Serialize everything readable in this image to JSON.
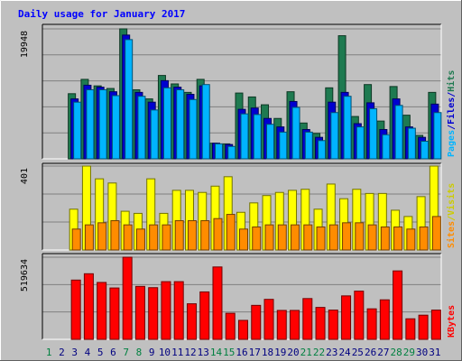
{
  "chart_data": {
    "type": "bar",
    "title": "Daily usage for January 2017",
    "categories": [
      "1",
      "2",
      "3",
      "4",
      "5",
      "6",
      "7",
      "8",
      "9",
      "10",
      "11",
      "12",
      "13",
      "14",
      "15",
      "16",
      "17",
      "18",
      "19",
      "20",
      "21",
      "22",
      "23",
      "24",
      "25",
      "26",
      "27",
      "28",
      "29",
      "30",
      "31"
    ],
    "weekend_days": [
      "1",
      "7",
      "8",
      "14",
      "15",
      "21",
      "22",
      "28",
      "29"
    ],
    "panels": [
      {
        "id": "pages_files_hits",
        "axis_max_label": "19948",
        "ylim": [
          0,
          19948
        ],
        "legend": [
          "Pages",
          "/",
          "Files",
          "/",
          "Hits"
        ],
        "series": [
          {
            "name": "Hits",
            "color": "#1e7a50",
            "values": [
              0,
              0,
              10000,
              12200,
              11200,
              10800,
              19950,
              10600,
              9200,
              12800,
              11500,
              10200,
              12200,
              2400,
              2300,
              10100,
              9500,
              8300,
              6200,
              10300,
              5500,
              3900,
              10900,
              18900,
              6500,
              11400,
              5800,
              11100,
              6700,
              3600,
              10200
            ]
          },
          {
            "name": "Files",
            "color": "#0000d0",
            "values": [
              0,
              0,
              9200,
              11300,
              11000,
              10300,
              19000,
              10200,
              8700,
              12000,
              11000,
              9900,
              11200,
              2400,
              2200,
              7600,
              7800,
              6200,
              4900,
              8800,
              4500,
              3300,
              8700,
              10200,
              5400,
              8600,
              4500,
              9200,
              4900,
              3300,
              8400
            ]
          },
          {
            "name": "Pages",
            "color": "#00b4ff",
            "values": [
              0,
              0,
              8700,
              10600,
              10600,
              9700,
              18300,
              9600,
              7500,
              10900,
              10600,
              9100,
              11400,
              2300,
              1900,
              6900,
              6800,
              5300,
              4100,
              7900,
              4100,
              2800,
              7100,
              9600,
              4900,
              7700,
              3700,
              8200,
              4700,
              2700,
              7100
            ]
          }
        ]
      },
      {
        "id": "visits_sites",
        "axis_max_label": "401",
        "ylim": [
          0,
          401
        ],
        "legend": [
          "Sites",
          "/",
          "Visits"
        ],
        "series": [
          {
            "name": "Visits",
            "color": "#ffff00",
            "values": [
              0,
              0,
              195,
              401,
              340,
              320,
              185,
              175,
              340,
              175,
              285,
              285,
              275,
              305,
              350,
              180,
              225,
              260,
              275,
              285,
              290,
              195,
              315,
              245,
              290,
              270,
              270,
              190,
              160,
              255,
              401
            ]
          },
          {
            "name": "Sites",
            "color": "#ff8c00",
            "values": [
              0,
              0,
              100,
              120,
              130,
              140,
              120,
              100,
              120,
              120,
              140,
              140,
              140,
              150,
              170,
              100,
              110,
              120,
              120,
              120,
              120,
              110,
              120,
              130,
              130,
              120,
              110,
              110,
              100,
              110,
              160
            ]
          }
        ]
      },
      {
        "id": "kbytes",
        "axis_max_label": "519634",
        "ylim": [
          0,
          519634
        ],
        "legend": [
          "KBytes"
        ],
        "series": [
          {
            "name": "KBytes",
            "color": "#ff0000",
            "values": [
              0,
              0,
              375000,
              415000,
              360000,
              325000,
              519634,
              335000,
              327000,
              365000,
              365000,
              225000,
              300000,
              458000,
              165000,
              120000,
              215000,
              253000,
              183000,
              183000,
              258000,
              202000,
              185000,
              275000,
              305000,
              193000,
              250000,
              433000,
              130000,
              153000,
              185000
            ]
          }
        ]
      }
    ]
  }
}
